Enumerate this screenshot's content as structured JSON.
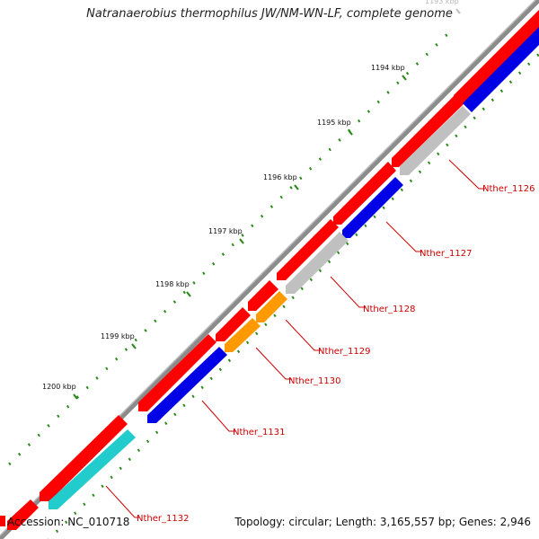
{
  "title": "Natranaerobius thermophilus JW/NM-WN-LF, complete genome",
  "footer": {
    "accession": "Accession: NC_010718",
    "summary": "Topology: circular; Length: 3,165,557 bp; Genes: 2,946"
  },
  "colors": {
    "backbone": "#8c8c8c",
    "forward_gene": "#ff0000",
    "blue_gene": "#0000e6",
    "gray_gene": "#c0c0c0",
    "orange_gene": "#ff9900",
    "cyan_gene": "#22cccc",
    "tick": "#2a8a1a",
    "label": "#cc0000"
  },
  "kbp_labels": [
    "1193 kbp",
    "1194 kbp",
    "1195 kbp",
    "1196 kbp",
    "1197 kbp",
    "1198 kbp",
    "1199 kbp",
    "1200 kbp"
  ],
  "genes": [
    {
      "name": "Nther_1126",
      "color": "gray"
    },
    {
      "name": "Nther_1127",
      "color": "blue"
    },
    {
      "name": "Nther_1128",
      "color": "gray"
    },
    {
      "name": "Nther_1129",
      "color": "orange"
    },
    {
      "name": "Nther_1130",
      "color": "orange"
    },
    {
      "name": "Nther_1131",
      "color": "blue"
    },
    {
      "name": "Nther_1132",
      "color": "cyan"
    }
  ]
}
